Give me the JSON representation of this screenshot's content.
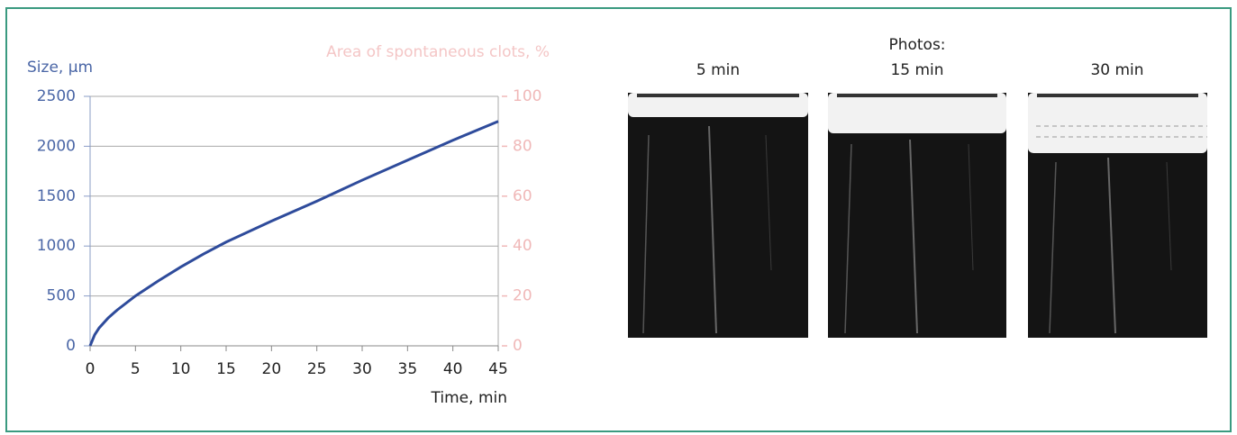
{
  "chart_data": {
    "type": "line",
    "y_label": "Size, µm",
    "y2_label": "Area of spontaneous clots, %",
    "x_label": "Time, min",
    "x": [
      0,
      0.5,
      1,
      2,
      3,
      5,
      7.5,
      10,
      12.5,
      15,
      20,
      25,
      30,
      35,
      40,
      45
    ],
    "values": [
      0,
      110,
      180,
      280,
      360,
      500,
      650,
      790,
      920,
      1040,
      1250,
      1450,
      1660,
      1860,
      2060,
      2250
    ],
    "color": "#2e4b9b",
    "xlim": [
      0,
      45
    ],
    "xticks": [
      0,
      5,
      10,
      15,
      20,
      25,
      30,
      35,
      40,
      45
    ],
    "ylim": [
      0,
      2500
    ],
    "yticks": [
      0,
      500,
      1000,
      1500,
      2000,
      2500
    ],
    "y2lim": [
      0,
      100
    ],
    "y2ticks": [
      0,
      20,
      40,
      60,
      80,
      100
    ],
    "grid": true
  },
  "photos": {
    "title": "Photos:",
    "labels": [
      "5 min",
      "15 min",
      "30 min"
    ]
  }
}
